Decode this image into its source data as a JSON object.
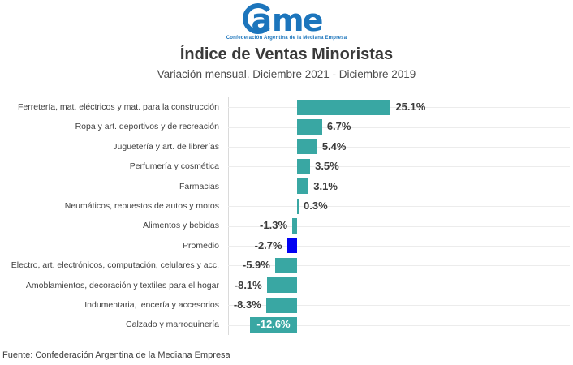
{
  "logo": {
    "a": "a",
    "me": "me",
    "subtext": "Confederación Argentina de la Mediana Empresa",
    "color": "#1c75bc"
  },
  "chart_data": {
    "type": "bar",
    "orientation": "horizontal",
    "title": "Índice de Ventas Minoristas",
    "subtitle": "Variación mensual. Diciembre 2021 - Diciembre 2019",
    "value_unit": "%",
    "xlim": [
      -15,
      30
    ],
    "grid": "category-lines",
    "legend": "none",
    "bar_color": "#39a7a3",
    "highlight_color": "#0202f2",
    "rows": [
      {
        "label": "Ferretería, mat. eléctricos y mat. para la construcción",
        "value": 25.1,
        "display": "25.1%"
      },
      {
        "label": "Ropa y art. deportivos y de recreación",
        "value": 6.7,
        "display": "6.7%"
      },
      {
        "label": "Juguetería y art. de librerías",
        "value": 5.4,
        "display": "5.4%"
      },
      {
        "label": "Perfumería y cosmética",
        "value": 3.5,
        "display": "3.5%"
      },
      {
        "label": "Farmacias",
        "value": 3.1,
        "display": "3.1%"
      },
      {
        "label": "Neumáticos, repuestos de autos y motos",
        "value": 0.3,
        "display": "0.3%"
      },
      {
        "label": "Alimentos y bebidas",
        "value": -1.3,
        "display": "-1.3%"
      },
      {
        "label": "Promedio",
        "value": -2.7,
        "display": "-2.7%",
        "highlight": true
      },
      {
        "label": "Electro, art. electrónicos, computación, celulares y acc.",
        "value": -5.9,
        "display": "-5.9%"
      },
      {
        "label": "Amoblamientos, decoración y textiles para el hogar",
        "value": -8.1,
        "display": "-8.1%"
      },
      {
        "label": "Indumentaria, lencería y accesorios",
        "value": -8.3,
        "display": "-8.3%"
      },
      {
        "label": "Calzado y marroquinería",
        "value": -12.6,
        "display": "-12.6%",
        "label_inside": true
      }
    ],
    "source": "Fuente: Confederación Argentina de la Mediana Empresa"
  }
}
